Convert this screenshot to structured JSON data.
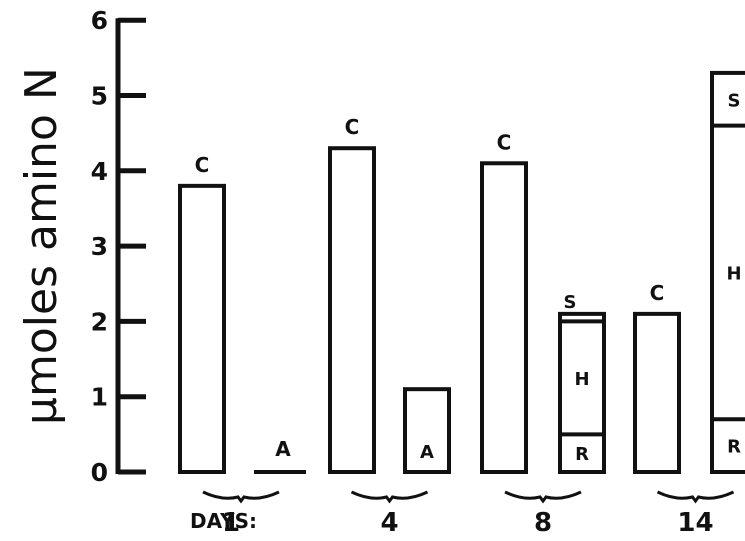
{
  "chart_data": {
    "type": "bar",
    "ylabel": "μmoles amino N",
    "ylim": [
      0,
      6
    ],
    "yticks": [
      "0",
      "1",
      "2",
      "3",
      "4",
      "5",
      "6"
    ],
    "x_prefix": "DAYS:",
    "groups": [
      "1",
      "4",
      "8",
      "14"
    ],
    "bars": [
      {
        "group": "1",
        "segments": [
          {
            "label": "C",
            "value": 3.8
          }
        ]
      },
      {
        "group": "1",
        "segments": [
          {
            "label": "A",
            "value": 0.02
          }
        ]
      },
      {
        "group": "4",
        "segments": [
          {
            "label": "C",
            "value": 4.3
          }
        ]
      },
      {
        "group": "4",
        "segments": [
          {
            "label": "A",
            "value": 1.1
          }
        ]
      },
      {
        "group": "8",
        "segments": [
          {
            "label": "C",
            "value": 4.1
          }
        ]
      },
      {
        "group": "8",
        "segments": [
          {
            "label": "R",
            "value": 0.5
          },
          {
            "label": "H",
            "value": 1.5
          },
          {
            "label": "S",
            "value": 0.1
          }
        ]
      },
      {
        "group": "14",
        "segments": [
          {
            "label": "C",
            "value": 2.1
          }
        ]
      },
      {
        "group": "14",
        "segments": [
          {
            "label": "R",
            "value": 0.7
          },
          {
            "label": "H",
            "value": 3.9
          },
          {
            "label": "S",
            "value": 0.7
          }
        ]
      }
    ]
  }
}
